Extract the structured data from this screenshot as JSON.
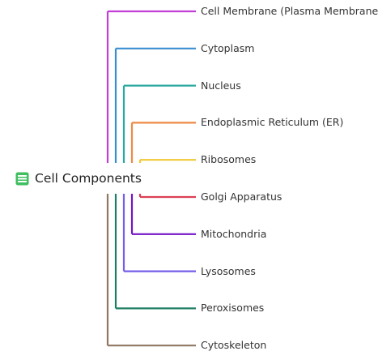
{
  "root": {
    "label": "Cell Components",
    "icon": "spreadsheet-icon",
    "icon_color": "#3fbf5f"
  },
  "children": [
    {
      "label": "Cell Membrane (Plasma Membrane)",
      "color": "#c13ed8"
    },
    {
      "label": "Cytoplasm",
      "color": "#3a8ed0"
    },
    {
      "label": "Nucleus",
      "color": "#2aa89f"
    },
    {
      "label": "Endoplasmic Reticulum (ER)",
      "color": "#ee8a46"
    },
    {
      "label": "Ribosomes",
      "color": "#efc836"
    },
    {
      "label": "Golgi Apparatus",
      "color": "#dc4056"
    },
    {
      "label": "Mitochondria",
      "color": "#7414c8"
    },
    {
      "label": "Lysosomes",
      "color": "#745ee8"
    },
    {
      "label": "Peroxisomes",
      "color": "#1e7e64"
    },
    {
      "label": "Cytoskeleton",
      "color": "#8f7862"
    }
  ]
}
